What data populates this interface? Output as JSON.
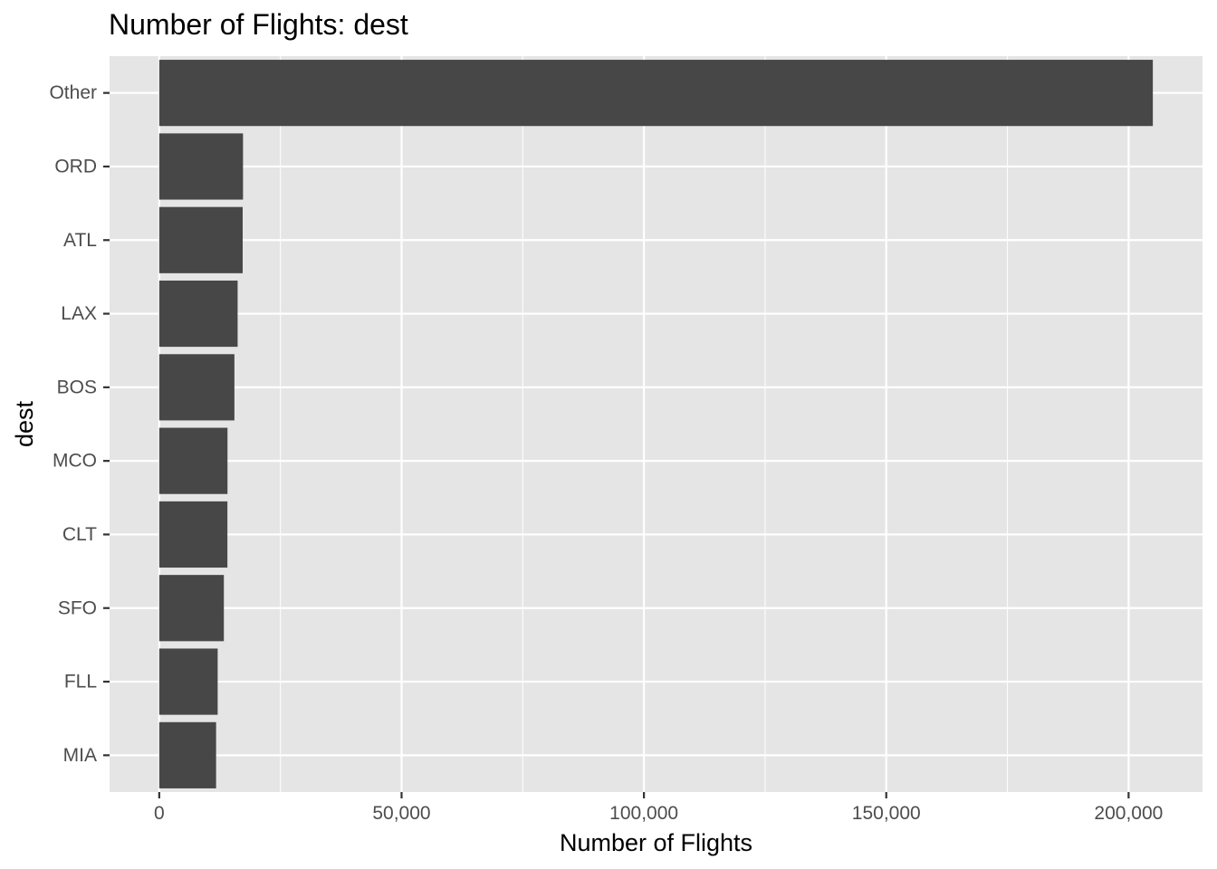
{
  "chart_data": {
    "type": "bar",
    "orientation": "horizontal",
    "title": "Number of Flights: dest",
    "xlabel": "Number of Flights",
    "ylabel": "dest",
    "categories": [
      "Other",
      "ORD",
      "ATL",
      "LAX",
      "BOS",
      "MCO",
      "CLT",
      "SFO",
      "FLL",
      "MIA"
    ],
    "values": [
      205000,
      17283,
      17215,
      16174,
      15508,
      14082,
      14064,
      13331,
      12055,
      11728
    ],
    "xlim": [
      -10250,
      215250
    ],
    "x_ticks": [
      0,
      50000,
      100000,
      150000,
      200000
    ],
    "x_tick_labels": [
      "0",
      "50,000",
      "100,000",
      "150,000",
      "200,000"
    ],
    "grid": true,
    "legend": "none",
    "colors": {
      "bar": "#474747",
      "panel_background": "#E5E5E5",
      "grid_major": "#FFFFFF",
      "text": "#4D4D4D"
    }
  }
}
